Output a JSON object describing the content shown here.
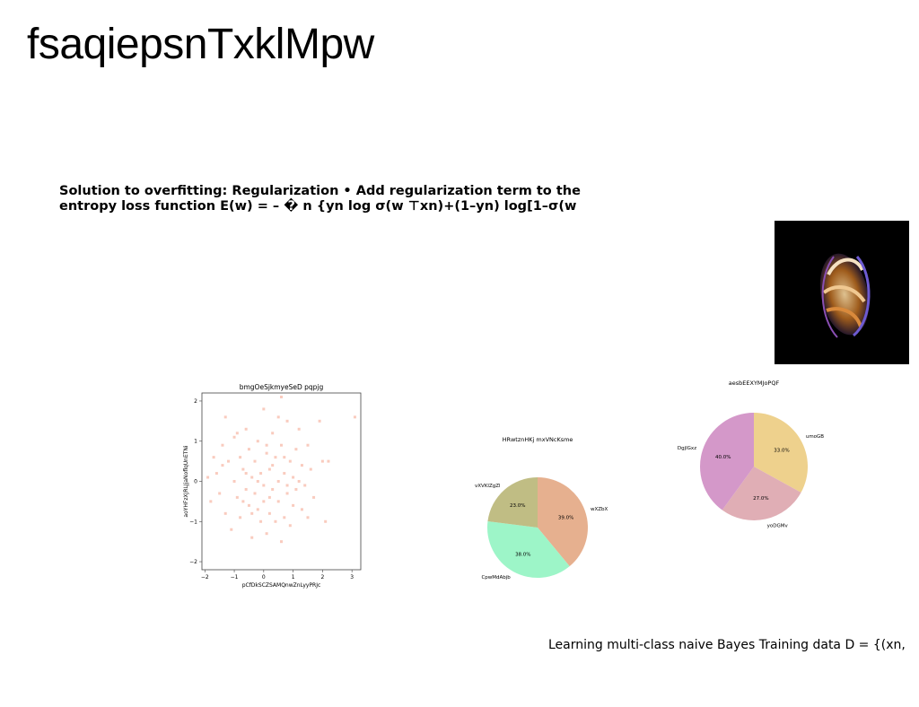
{
  "page": {
    "title": "fsaqiepsnTxklMpw",
    "text_lines": [
      "Solution to overfitting: Regularization • Add regularization term to the",
      "entropy loss function E(w) = – � n {yn log σ(w ⊤xn)+(1–yn) log[1–σ(w"
    ],
    "bottom_text": "Learning multi-class naive Bayes Training data D = {(xn,"
  },
  "chart_data": [
    {
      "type": "scatter",
      "title": "bmgOeSjkmyeSeD pqpjg",
      "xlabel": "pCfDkSCZSAMQnwZnLyyPRJc",
      "ylabel": "aoYHFzXJRLJjaNoflqUnETNi",
      "xlim": [
        -2.1,
        3.3
      ],
      "ylim": [
        -2.2,
        2.2
      ],
      "xticks": [
        -2,
        -1,
        0,
        1,
        2,
        3
      ],
      "yticks": [
        -2,
        -1,
        0,
        1,
        2
      ],
      "color": "#f7b9a8",
      "points": [
        [
          -1.9,
          0.1
        ],
        [
          -1.7,
          0.6
        ],
        [
          -1.6,
          0.2
        ],
        [
          -1.5,
          -0.3
        ],
        [
          -1.4,
          0.9
        ],
        [
          -1.3,
          1.6
        ],
        [
          -1.3,
          -0.8
        ],
        [
          -1.2,
          0.5
        ],
        [
          -1.1,
          -1.2
        ],
        [
          -1.0,
          1.1
        ],
        [
          -1.0,
          0.0
        ],
        [
          -0.9,
          -0.4
        ],
        [
          -0.8,
          0.6
        ],
        [
          -0.8,
          -0.9
        ],
        [
          -0.7,
          0.3
        ],
        [
          -0.6,
          1.3
        ],
        [
          -0.6,
          -0.2
        ],
        [
          -0.5,
          0.8
        ],
        [
          -0.5,
          -0.6
        ],
        [
          -0.4,
          0.1
        ],
        [
          -0.4,
          -1.4
        ],
        [
          -0.3,
          0.5
        ],
        [
          -0.3,
          -0.3
        ],
        [
          -0.2,
          1.0
        ],
        [
          -0.2,
          -0.7
        ],
        [
          -0.1,
          0.2
        ],
        [
          -0.1,
          -1.0
        ],
        [
          0.0,
          1.8
        ],
        [
          0.0,
          -0.1
        ],
        [
          0.0,
          -0.5
        ],
        [
          0.1,
          0.7
        ],
        [
          0.1,
          -1.3
        ],
        [
          0.2,
          0.3
        ],
        [
          0.2,
          -0.8
        ],
        [
          0.3,
          1.2
        ],
        [
          0.3,
          -0.2
        ],
        [
          0.4,
          0.6
        ],
        [
          0.4,
          -1.0
        ],
        [
          0.5,
          0.0
        ],
        [
          0.5,
          -0.5
        ],
        [
          0.6,
          2.1
        ],
        [
          0.6,
          0.9
        ],
        [
          0.6,
          -1.5
        ],
        [
          0.7,
          0.2
        ],
        [
          0.7,
          -0.9
        ],
        [
          0.8,
          1.5
        ],
        [
          0.8,
          -0.3
        ],
        [
          0.9,
          0.5
        ],
        [
          0.9,
          -1.1
        ],
        [
          1.0,
          0.1
        ],
        [
          1.0,
          -0.6
        ],
        [
          1.1,
          0.8
        ],
        [
          1.1,
          -0.2
        ],
        [
          1.2,
          1.3
        ],
        [
          1.3,
          0.4
        ],
        [
          1.3,
          -0.7
        ],
        [
          1.4,
          -0.1
        ],
        [
          1.5,
          0.9
        ],
        [
          1.6,
          0.3
        ],
        [
          1.7,
          -0.4
        ],
        [
          1.9,
          1.5
        ],
        [
          2.0,
          0.5
        ],
        [
          2.1,
          -1.0
        ],
        [
          2.2,
          0.5
        ],
        [
          3.1,
          1.6
        ],
        [
          -0.2,
          0.0
        ],
        [
          0.3,
          0.4
        ],
        [
          -0.6,
          0.2
        ],
        [
          0.8,
          -0.1
        ],
        [
          0.2,
          -0.4
        ],
        [
          -1.8,
          -0.5
        ],
        [
          -0.9,
          1.2
        ],
        [
          0.5,
          1.6
        ],
        [
          1.2,
          0.0
        ],
        [
          -0.4,
          -0.8
        ],
        [
          0.1,
          0.9
        ],
        [
          -1.4,
          0.4
        ],
        [
          0.7,
          0.6
        ],
        [
          -0.7,
          -0.5
        ],
        [
          1.5,
          -0.9
        ]
      ]
    },
    {
      "type": "pie",
      "title": "HRwtznHKj mxVNcKsme",
      "slices": [
        {
          "label": "wXZbX",
          "value": 39.0,
          "color": "#e6b08f"
        },
        {
          "label": "CpwMdAbjb",
          "value": 38.0,
          "color": "#9df5c8"
        },
        {
          "label": "vXVKlZgZl",
          "value": 23.0,
          "color": "#c0bd84"
        }
      ]
    },
    {
      "type": "pie",
      "title": "aesbEEXYMJoPQF",
      "slices": [
        {
          "label": "umoGB",
          "value": 33.0,
          "color": "#eed18d"
        },
        {
          "label": "yoDGMv",
          "value": 27.0,
          "color": "#e0aeb5"
        },
        {
          "label": "DgjlGxz",
          "value": 40.0,
          "color": "#d498c9"
        }
      ]
    }
  ]
}
